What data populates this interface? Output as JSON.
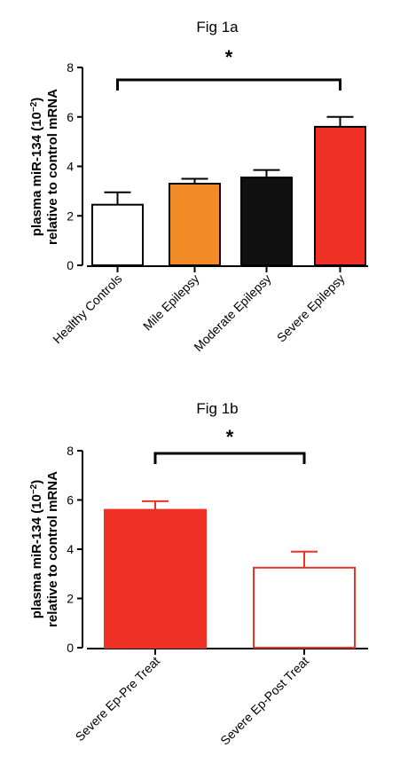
{
  "chart_data": [
    {
      "type": "bar",
      "title": "Fig 1a",
      "ylabel_line1": "plasma miR-134 (10",
      "ylabel_exp": "−2",
      "ylabel_line1_end": ")",
      "ylabel_line2": "relative to control mRNA",
      "xlabel": "",
      "categories": [
        "Healthy Controls",
        "Mile Epilepsy",
        "Moderate Epilepsy",
        "Severe Epilepsy"
      ],
      "values": [
        2.45,
        3.3,
        3.55,
        5.6
      ],
      "errors": [
        0.5,
        0.2,
        0.3,
        0.4
      ],
      "ylim": [
        0,
        8
      ],
      "yticks": [
        0,
        2,
        4,
        6,
        8
      ],
      "colors": [
        "#ffffff",
        "#f28a26",
        "#111111",
        "#ee3124"
      ],
      "edge_colors": [
        "#000000",
        "#000000",
        "#000000",
        "#000000"
      ],
      "significance": {
        "label": "*",
        "from": 0,
        "to": 3
      },
      "grid": false
    },
    {
      "type": "bar",
      "title": "Fig 1b",
      "ylabel_line1": "plasma miR-134 (10",
      "ylabel_exp": "−2",
      "ylabel_line1_end": ")",
      "ylabel_line2": "relative to control mRNA",
      "xlabel": "",
      "categories": [
        "Severe Ep-Pre Treat",
        "Severe Ep-Post Treat"
      ],
      "values": [
        5.6,
        3.25
      ],
      "errors": [
        0.35,
        0.65
      ],
      "ylim": [
        0,
        8
      ],
      "yticks": [
        0,
        2,
        4,
        6,
        8
      ],
      "colors": [
        "#ee3124",
        "#ffffff"
      ],
      "edge_colors": [
        "#ee3124",
        "#ee3124"
      ],
      "significance": {
        "label": "*",
        "from": 0,
        "to": 1
      },
      "grid": false
    }
  ]
}
